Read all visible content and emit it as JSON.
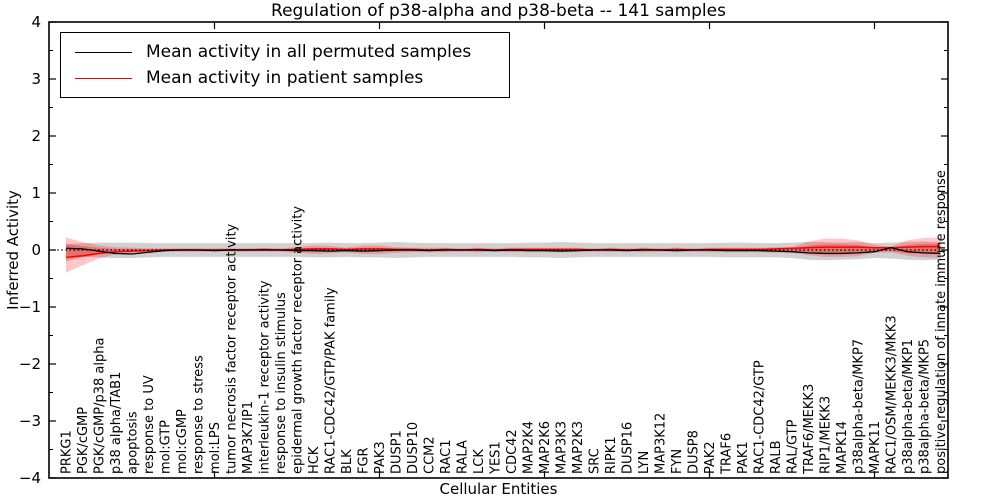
{
  "title": "Regulation of p38-alpha and p38-beta -- 141 samples",
  "chart_data": {
    "type": "line",
    "title": "Regulation of p38-alpha and p38-beta -- 141 samples",
    "xlabel": "Cellular Entities",
    "ylabel": "Inferred Activity",
    "ylim": [
      -4,
      4
    ],
    "y_ticks": [
      "4",
      "3",
      "2",
      "1",
      "0",
      "−1",
      "−2",
      "−3",
      "−4"
    ],
    "y_tick_values": [
      4,
      3,
      2,
      1,
      0,
      -1,
      -2,
      -3,
      -4
    ],
    "y_minor_step": 0.5,
    "x_major_tick_positions": [
      10,
      20,
      30,
      40,
      50
    ],
    "grid": false,
    "legend_position": "upper left",
    "zero_line": {
      "style": "dotted",
      "color": "#000000",
      "y": 0
    },
    "categories": [
      "PRKG1",
      "PGK/cGMP",
      "PGK/cGMP/p38 alpha",
      "p38 alpha/TAB1",
      "apoptosis",
      "response to UV",
      "mol:GTP",
      "mol:cGMP",
      "response to stress",
      "mol:LPS",
      "tumor necrosis factor receptor activity",
      "MAP3K7IP1",
      "interleukin-1 receptor activity",
      "response to insulin stimulus",
      "epidermal growth factor receptor activity",
      "HCK",
      "RAC1-CDC42/GTP/PAK family",
      "BLK",
      "FGR",
      "PAK3",
      "DUSP1",
      "DUSP10",
      "CCM2",
      "RAC1",
      "RALA",
      "LCK",
      "YES1",
      "CDC42",
      "MAP2K4",
      "MAP2K6",
      "MAP3K3",
      "MAP2K3",
      "SRC",
      "RIPK1",
      "DUSP16",
      "LYN",
      "MAP3K12",
      "FYN",
      "DUSP8",
      "PAK2",
      "TRAF6",
      "PAK1",
      "RAC1-CDC42/GTP",
      "RALB",
      "RAL/GTP",
      "TRAF6/MEKK3",
      "RIP1/MEKK3",
      "MAPK14",
      "p38alpha-beta/MKP7",
      "MAPK11",
      "RAC1/OSM/MEKK3/MKK3",
      "p38alpha-beta/MKP1",
      "p38alpha-beta/MKP5",
      "positive regulation of innate immune response"
    ],
    "series": [
      {
        "name": "Mean activity in all permuted samples",
        "color": "#000000",
        "values": [
          0.03,
          0.02,
          -0.02,
          -0.06,
          -0.07,
          -0.04,
          -0.01,
          0,
          0,
          -0.01,
          0,
          0,
          0,
          0,
          -0.01,
          -0.01,
          -0.02,
          -0.01,
          -0.02,
          -0.01,
          0,
          0,
          -0.01,
          0,
          0,
          0,
          -0.01,
          0,
          -0.01,
          -0.01,
          -0.02,
          -0.01,
          0,
          0,
          -0.01,
          0,
          0,
          -0.01,
          0,
          0,
          -0.01,
          -0.01,
          -0.01,
          -0.02,
          -0.03,
          -0.05,
          -0.06,
          -0.06,
          -0.05,
          -0.03,
          0.04,
          -0.03,
          -0.05,
          -0.06
        ]
      },
      {
        "name": "Mean activity in patient samples",
        "color": "#ff0000",
        "values": [
          -0.13,
          -0.1,
          -0.06,
          -0.03,
          -0.02,
          -0.01,
          0,
          0,
          0,
          0,
          0,
          0,
          0.01,
          0,
          0.01,
          0.02,
          0.02,
          0.01,
          0.02,
          0.02,
          0.01,
          0.01,
          0,
          0.01,
          0,
          0.01,
          0,
          0.01,
          0.01,
          0.01,
          0.01,
          0.01,
          0,
          0.01,
          0,
          0.01,
          0,
          0.01,
          0,
          0.01,
          0.01,
          0.01,
          0.01,
          0.02,
          0.03,
          0.04,
          0.05,
          0.05,
          0.05,
          0.04,
          0.04,
          0.05,
          0.06,
          0.06
        ]
      }
    ],
    "bands": [
      {
        "name": "permuted samples range",
        "color": "#999999",
        "opacity": 0.45,
        "upper": [
          0.1,
          0.12,
          0.13,
          0.13,
          0.13,
          0.12,
          0.12,
          0.12,
          0.12,
          0.12,
          0.12,
          0.12,
          0.12,
          0.12,
          0.12,
          0.12,
          0.13,
          0.12,
          0.12,
          0.13,
          0.14,
          0.13,
          0.12,
          0.12,
          0.12,
          0.12,
          0.12,
          0.12,
          0.13,
          0.13,
          0.14,
          0.13,
          0.12,
          0.12,
          0.12,
          0.12,
          0.12,
          0.12,
          0.12,
          0.12,
          0.13,
          0.13,
          0.12,
          0.12,
          0.13,
          0.14,
          0.14,
          0.13,
          0.14,
          0.12,
          0.13,
          0.14,
          0.15,
          0.14
        ],
        "lower": [
          -0.1,
          -0.12,
          -0.13,
          -0.14,
          -0.14,
          -0.13,
          -0.12,
          -0.12,
          -0.12,
          -0.12,
          -0.12,
          -0.12,
          -0.12,
          -0.12,
          -0.12,
          -0.13,
          -0.13,
          -0.12,
          -0.13,
          -0.13,
          -0.14,
          -0.13,
          -0.12,
          -0.12,
          -0.12,
          -0.12,
          -0.12,
          -0.12,
          -0.13,
          -0.13,
          -0.14,
          -0.13,
          -0.12,
          -0.12,
          -0.12,
          -0.12,
          -0.12,
          -0.12,
          -0.12,
          -0.12,
          -0.13,
          -0.13,
          -0.13,
          -0.13,
          -0.14,
          -0.17,
          -0.18,
          -0.17,
          -0.16,
          -0.14,
          -0.15,
          -0.17,
          -0.18,
          -0.17
        ]
      },
      {
        "name": "patient samples range (outer)",
        "color": "#ff0000",
        "opacity": 0.22,
        "upper": [
          0.22,
          0.14,
          0.08,
          0.05,
          0.04,
          0.03,
          0.03,
          0.03,
          0.03,
          0.03,
          0.03,
          0.03,
          0.03,
          0.03,
          0.05,
          0.08,
          0.07,
          0.04,
          0.08,
          0.08,
          0.05,
          0.04,
          0.04,
          0.04,
          0.03,
          0.04,
          0.03,
          0.04,
          0.04,
          0.04,
          0.04,
          0.04,
          0.03,
          0.04,
          0.03,
          0.04,
          0.03,
          0.04,
          0.03,
          0.04,
          0.04,
          0.04,
          0.04,
          0.05,
          0.05,
          0.15,
          0.2,
          0.2,
          0.17,
          0.09,
          0.06,
          0.17,
          0.21,
          0.22
        ],
        "lower": [
          -0.4,
          -0.27,
          -0.15,
          -0.08,
          -0.05,
          -0.04,
          -0.03,
          -0.03,
          -0.03,
          -0.03,
          -0.03,
          -0.03,
          -0.03,
          -0.03,
          -0.05,
          -0.07,
          -0.06,
          -0.04,
          -0.07,
          -0.07,
          -0.05,
          -0.04,
          -0.04,
          -0.04,
          -0.03,
          -0.04,
          -0.03,
          -0.04,
          -0.04,
          -0.04,
          -0.04,
          -0.04,
          -0.03,
          -0.04,
          -0.03,
          -0.04,
          -0.03,
          -0.04,
          -0.03,
          -0.04,
          -0.04,
          -0.04,
          -0.04,
          -0.05,
          -0.05,
          -0.09,
          -0.12,
          -0.12,
          -0.11,
          -0.05,
          -0.04,
          -0.1,
          -0.13,
          -0.14
        ]
      },
      {
        "name": "patient samples range (inner)",
        "color": "#ff0000",
        "opacity": 0.3,
        "upper": [
          0.1,
          0.07,
          0.04,
          0.02,
          0.02,
          0.015,
          0.015,
          0.015,
          0.015,
          0.015,
          0.015,
          0.015,
          0.015,
          0.015,
          0.025,
          0.04,
          0.035,
          0.02,
          0.04,
          0.04,
          0.025,
          0.02,
          0.02,
          0.02,
          0.015,
          0.02,
          0.015,
          0.02,
          0.02,
          0.02,
          0.02,
          0.02,
          0.015,
          0.02,
          0.015,
          0.02,
          0.015,
          0.02,
          0.015,
          0.02,
          0.02,
          0.02,
          0.02,
          0.025,
          0.025,
          0.08,
          0.1,
          0.1,
          0.09,
          0.05,
          0.03,
          0.09,
          0.11,
          0.11
        ],
        "lower": [
          -0.19,
          -0.13,
          -0.08,
          -0.04,
          -0.025,
          -0.02,
          -0.015,
          -0.015,
          -0.015,
          -0.015,
          -0.015,
          -0.015,
          -0.015,
          -0.015,
          -0.025,
          -0.035,
          -0.03,
          -0.02,
          -0.035,
          -0.035,
          -0.025,
          -0.02,
          -0.02,
          -0.02,
          -0.015,
          -0.02,
          -0.015,
          -0.02,
          -0.02,
          -0.02,
          -0.02,
          -0.02,
          -0.015,
          -0.02,
          -0.015,
          -0.02,
          -0.015,
          -0.02,
          -0.015,
          -0.02,
          -0.02,
          -0.02,
          -0.02,
          -0.025,
          -0.025,
          -0.05,
          -0.06,
          -0.06,
          -0.055,
          -0.03,
          -0.02,
          -0.055,
          -0.065,
          -0.07
        ]
      }
    ]
  },
  "legend": {
    "items": [
      {
        "label": "Mean activity in all permuted samples",
        "color": "#000000"
      },
      {
        "label": "Mean activity in patient samples",
        "color": "#ff0000"
      }
    ]
  },
  "axes": {
    "x_label": "Cellular Entities",
    "y_label": "Inferred Activity"
  }
}
